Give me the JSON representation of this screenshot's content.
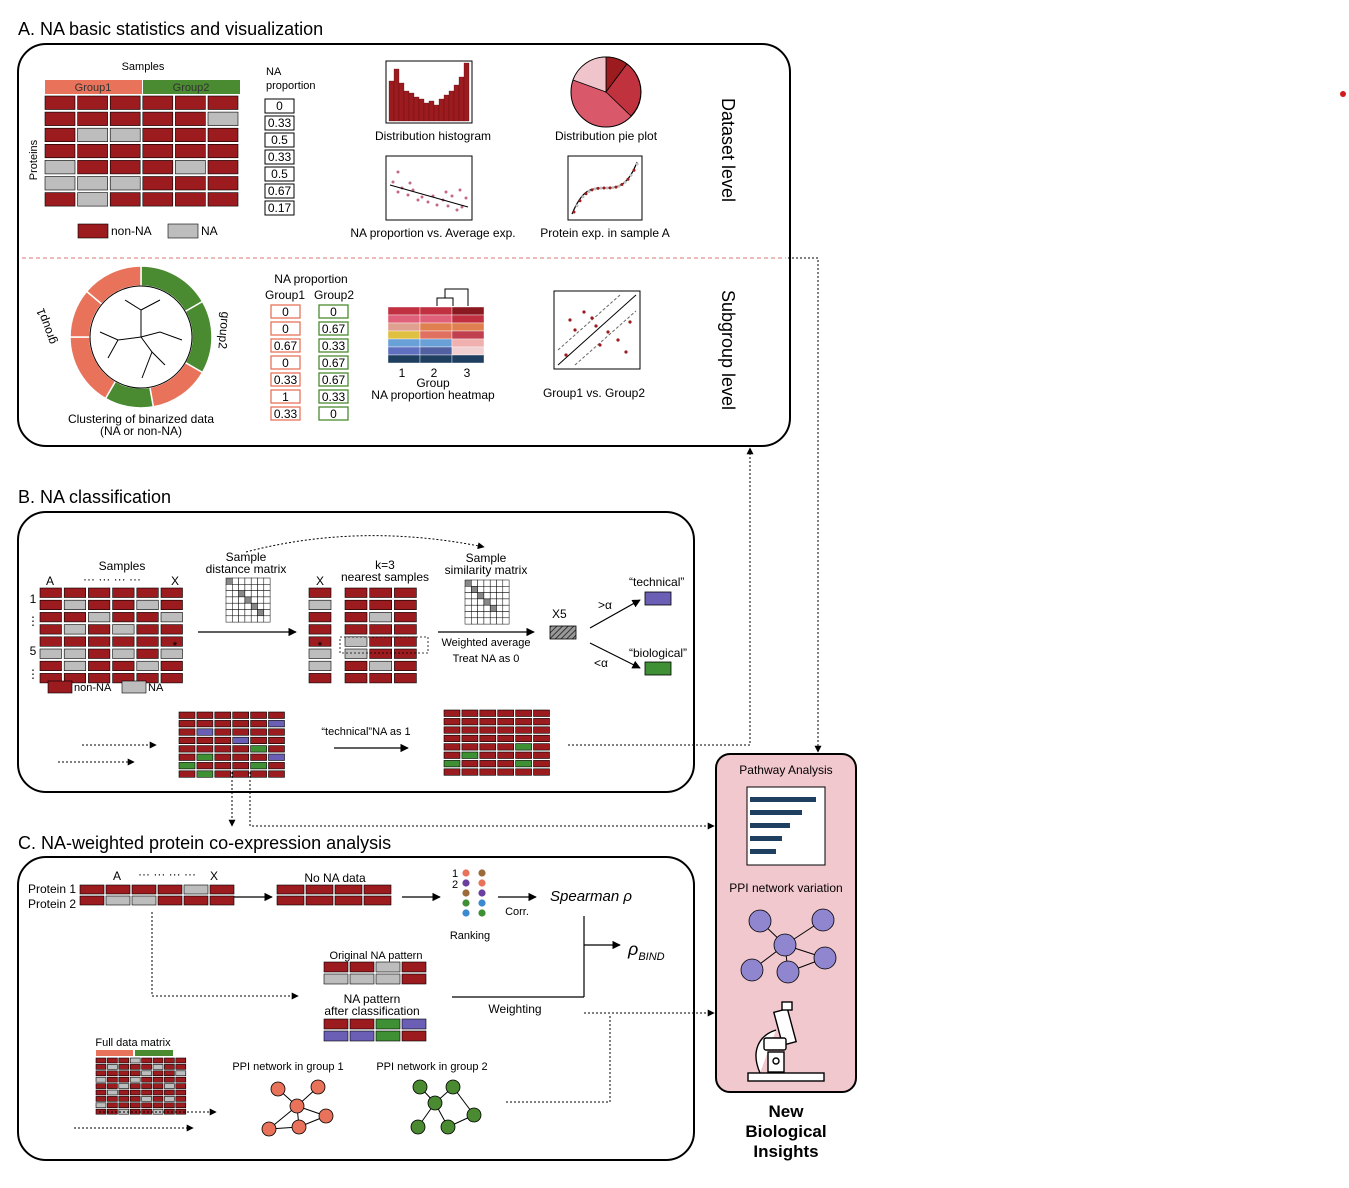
{
  "colors": {
    "non_na": "#9b1b1f",
    "na": "#bdbdbd",
    "group1": "#e8735a",
    "group2": "#4a8a30",
    "technical": "#6a5fb5",
    "biological": "#3f8f34",
    "insights_bg": "#f2c8cf",
    "navy": "#1f3f60"
  },
  "sectionA": {
    "title": "A. NA basic statistics and visualization",
    "samples_label": "Samples",
    "group1_label": "Group1",
    "group2_label": "Group2",
    "proteins_label": "Proteins",
    "na_proportion_label_1": "NA",
    "na_proportion_label_2": "proportion",
    "na_proportions": [
      "0",
      "0.33",
      "0.5",
      "0.33",
      "0.5",
      "0.67",
      "0.17"
    ],
    "legend_non_na": "non-NA",
    "legend_na": "NA",
    "plots": {
      "histogram": "Distribution histogram",
      "pie": "Distribution pie plot",
      "scatter": "NA proportion vs. Average exp.",
      "sample": "Protein exp. in sample A"
    },
    "dataset_level": "Dataset level",
    "subgroup_level": "Subgroup level",
    "clustering_label_1": "Clustering of binarized data",
    "clustering_label_2": "(NA or non-NA)",
    "ring_group1": "group1",
    "ring_group2": "group2",
    "sub_na_prop_title": "NA proportion",
    "sub_group1": "Group1",
    "sub_group2": "Group2",
    "group1_values": [
      "0",
      "0",
      "0.67",
      "0",
      "0.33",
      "1",
      "0.33"
    ],
    "group2_values": [
      "0",
      "0.67",
      "0.33",
      "0.67",
      "0.67",
      "0.33",
      "0"
    ],
    "heatmap_ticks": [
      "1",
      "2",
      "3"
    ],
    "heatmap_group": "Group",
    "heatmap_title": "NA proportion heatmap",
    "g1g2_label": "Group1 vs. Group2"
  },
  "sectionB": {
    "title": "B. NA classification",
    "samples_label": "Samples",
    "col_a": "A",
    "col_dots": "··· ··· ··· ···",
    "col_x": "X",
    "row_labels": [
      "1",
      "⋮",
      "5",
      "⋮"
    ],
    "star": "*",
    "distance_1": "Sample",
    "distance_2": "distance matrix",
    "x_label": "X",
    "k_label_1": "k=3",
    "k_label_2": "nearest samples",
    "similarity_1": "Sample",
    "similarity_2": "similarity matrix",
    "weighted_1": "Weighted average",
    "weighted_2": "Treat NA as 0",
    "x5": "X5",
    "gt_alpha": ">α",
    "lt_alpha": "<α",
    "technical": "“technical”",
    "biological": "“biological”",
    "legend_non_na": "non-NA",
    "legend_na": "NA",
    "technical_as_1": "“technical”NA as 1"
  },
  "sectionC": {
    "title": "C. NA-weighted protein co-expression analysis",
    "protein1": "Protein 1",
    "protein2": "Protein 2",
    "col_a": "A",
    "col_dots": "··· ··· ··· ···",
    "col_x": "X",
    "no_na": "No NA data",
    "rank1": "1",
    "rank2": "2",
    "ranking": "Ranking",
    "corr": "Corr.",
    "spearman": "Spearman ρ",
    "rho_bind": "ρ",
    "rho_bind_sub": "BIND",
    "original_pattern": "Original NA pattern",
    "after_1": "NA pattern",
    "after_2": "after classification",
    "weighting": "Weighting",
    "full_matrix": "Full data matrix",
    "ppi1": "PPI network in group 1",
    "ppi2": "PPI network in group 2"
  },
  "insights": {
    "pathway": "Pathway Analysis",
    "ppi": "PPI network variation",
    "title_1": "New",
    "title_2": "Biological",
    "title_3": "Insights"
  }
}
